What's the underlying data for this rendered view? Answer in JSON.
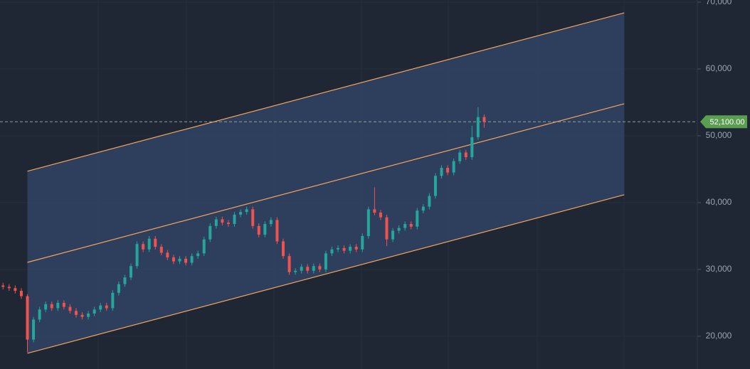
{
  "chart_data": {
    "type": "candlestick",
    "xlim": [
      -0.5,
      114
    ],
    "ylim": [
      15100,
      70320
    ],
    "yticks": [
      {
        "value": 20000,
        "label": "20,000"
      },
      {
        "value": 30000,
        "label": "30,000"
      },
      {
        "value": 40000,
        "label": "40,000"
      },
      {
        "value": 50000,
        "label": "50,000"
      },
      {
        "value": 60000,
        "label": "60,000"
      },
      {
        "value": 70000,
        "label": "70,000"
      }
    ],
    "grid": true,
    "up_color": "#26a69a",
    "down_color": "#ef5350",
    "open": [
      27600,
      27400,
      27200,
      26800,
      26000,
      19500,
      22500,
      24000,
      24800,
      24200,
      25000,
      24400,
      23800,
      23200,
      22900,
      23400,
      24000,
      24600,
      24200,
      26500,
      27800,
      28800,
      30500,
      33800,
      33000,
      34600,
      33400,
      32500,
      31800,
      31200,
      31600,
      31000,
      32000,
      32400,
      34500,
      36500,
      37500,
      37000,
      36800,
      38200,
      38600,
      39000,
      36500,
      35200,
      36800,
      37400,
      34200,
      32000,
      29600,
      29800,
      30400,
      29800,
      30500,
      30000,
      32400,
      33000,
      33200,
      32800,
      33400,
      33000,
      35000,
      39000,
      38500,
      37800,
      34500,
      35800,
      36200,
      36800,
      36400,
      38800,
      39400,
      41000,
      44000,
      45200,
      44500,
      46200,
      47500,
      46800,
      49800,
      52800
    ],
    "high": [
      28000,
      27800,
      27600,
      27200,
      26300,
      22900,
      24400,
      25200,
      25200,
      25400,
      25400,
      24800,
      24200,
      23600,
      23800,
      24400,
      25000,
      25000,
      26900,
      28200,
      29200,
      30900,
      34200,
      34200,
      35000,
      35000,
      33800,
      32900,
      32200,
      32000,
      32000,
      32400,
      32800,
      34900,
      36900,
      37900,
      37900,
      37400,
      38600,
      39000,
      39400,
      39400,
      36900,
      37200,
      37800,
      37800,
      34600,
      32400,
      30200,
      30800,
      30800,
      30900,
      30900,
      32800,
      33400,
      33600,
      33600,
      33800,
      33800,
      35400,
      39400,
      42300,
      38900,
      38200,
      36200,
      36600,
      37200,
      37200,
      39200,
      39800,
      41400,
      44400,
      45600,
      45600,
      46600,
      47900,
      47900,
      51500,
      54300,
      53200
    ],
    "low": [
      27000,
      26800,
      26400,
      25600,
      17600,
      19100,
      22100,
      23600,
      23800,
      23800,
      24000,
      23400,
      22800,
      22500,
      22500,
      23000,
      23600,
      23800,
      23800,
      26100,
      27400,
      28400,
      30100,
      32600,
      32600,
      33000,
      32100,
      31400,
      30800,
      30800,
      30600,
      30600,
      31600,
      32000,
      34100,
      36100,
      36600,
      36400,
      36400,
      37800,
      38200,
      36100,
      34800,
      34800,
      36400,
      33800,
      31600,
      29200,
      29200,
      29400,
      29400,
      29400,
      29600,
      29600,
      32000,
      32600,
      32400,
      32400,
      32600,
      32600,
      34600,
      38100,
      37400,
      33500,
      34100,
      35400,
      35800,
      36000,
      36000,
      38400,
      39000,
      40600,
      43600,
      44100,
      44100,
      45800,
      46400,
      46400,
      49400,
      51200
    ],
    "close": [
      27400,
      27200,
      26800,
      26000,
      19500,
      22500,
      24000,
      24800,
      24200,
      25000,
      24400,
      23800,
      23200,
      22900,
      23400,
      24000,
      24600,
      24200,
      26500,
      27800,
      28800,
      30500,
      33800,
      33000,
      34600,
      33400,
      32500,
      31800,
      31200,
      31600,
      31000,
      32000,
      32400,
      34500,
      36500,
      37500,
      37000,
      36800,
      38200,
      38600,
      39000,
      36500,
      35200,
      36800,
      37400,
      34200,
      32000,
      29600,
      29800,
      30400,
      29800,
      30500,
      30000,
      32400,
      33000,
      33200,
      32800,
      33400,
      33000,
      35000,
      39000,
      38500,
      37800,
      34500,
      35800,
      36200,
      36800,
      36400,
      38800,
      39400,
      41000,
      44000,
      45200,
      44500,
      46200,
      47500,
      46800,
      49800,
      52800,
      52100
    ],
    "channel": {
      "x": [
        4,
        102
      ],
      "upper": [
        44700,
        68400
      ],
      "middle": [
        31060,
        54790
      ],
      "lower": [
        17450,
        41170
      ],
      "line_color": "#f5a35c",
      "fill_color": "#2f4260"
    },
    "last_price": {
      "value": 52100,
      "label": "52,100.00",
      "color": "#5a9e52"
    }
  }
}
